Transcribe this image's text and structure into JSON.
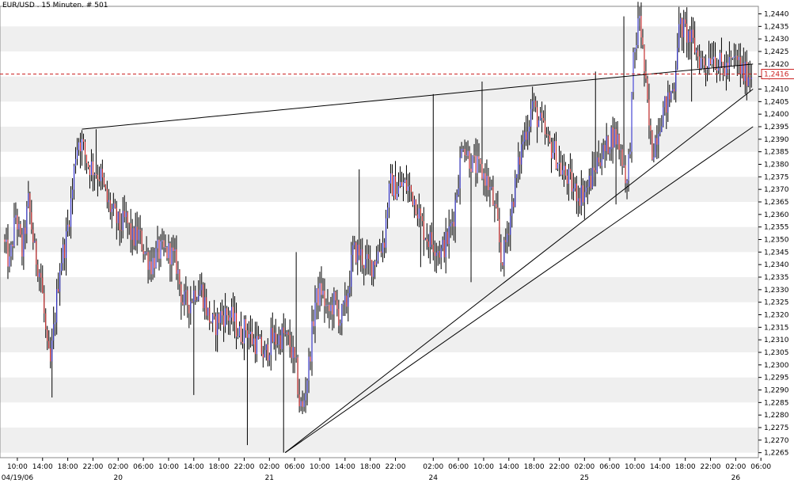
{
  "chart_data": {
    "type": "candlestick",
    "title": "EUR/USD . 15 Minuten. # 501",
    "current_price_label": "1,2416",
    "current_price": 1.2416,
    "ylim": [
      1.2263,
      1.2443
    ],
    "y_ticks": [
      "1,2440",
      "1,2435",
      "1,2430",
      "1,2425",
      "1,2420",
      "1,2415",
      "1,2410",
      "1,2405",
      "1,2400",
      "1,2395",
      "1,2390",
      "1,2385",
      "1,2380",
      "1,2375",
      "1,2370",
      "1,2365",
      "1,2360",
      "1,2355",
      "1,2350",
      "1,2345",
      "1,2340",
      "1,2335",
      "1,2330",
      "1,2325",
      "1,2320",
      "1,2315",
      "1,2310",
      "1,2305",
      "1,2300",
      "1,2295",
      "1,2290",
      "1,2285",
      "1,2280",
      "1,2275",
      "1,2270",
      "1,2265"
    ],
    "x_tick_labels": [
      {
        "bar": 8,
        "label": "10:00",
        "sub": "04/19/06"
      },
      {
        "bar": 24,
        "label": "14:00",
        "sub": ""
      },
      {
        "bar": 40,
        "label": "18:00",
        "sub": ""
      },
      {
        "bar": 56,
        "label": "22:00",
        "sub": ""
      },
      {
        "bar": 72,
        "label": "02:00",
        "sub": "20"
      },
      {
        "bar": 88,
        "label": "06:00",
        "sub": ""
      },
      {
        "bar": 104,
        "label": "10:00",
        "sub": ""
      },
      {
        "bar": 120,
        "label": "14:00",
        "sub": ""
      },
      {
        "bar": 136,
        "label": "18:00",
        "sub": ""
      },
      {
        "bar": 152,
        "label": "22:00",
        "sub": ""
      },
      {
        "bar": 168,
        "label": "02:00",
        "sub": "21"
      },
      {
        "bar": 184,
        "label": "06:00",
        "sub": ""
      },
      {
        "bar": 200,
        "label": "10:00",
        "sub": ""
      },
      {
        "bar": 216,
        "label": "14:00",
        "sub": ""
      },
      {
        "bar": 232,
        "label": "18:00",
        "sub": ""
      },
      {
        "bar": 248,
        "label": "22:00",
        "sub": ""
      },
      {
        "bar": 272,
        "label": "02:00",
        "sub": "24"
      },
      {
        "bar": 288,
        "label": "06:00",
        "sub": ""
      },
      {
        "bar": 304,
        "label": "10:00",
        "sub": ""
      },
      {
        "bar": 320,
        "label": "14:00",
        "sub": ""
      },
      {
        "bar": 336,
        "label": "18:00",
        "sub": ""
      },
      {
        "bar": 352,
        "label": "22:00",
        "sub": ""
      },
      {
        "bar": 368,
        "label": "02:00",
        "sub": "25"
      },
      {
        "bar": 384,
        "label": "06:00",
        "sub": ""
      },
      {
        "bar": 400,
        "label": "10:00",
        "sub": ""
      },
      {
        "bar": 416,
        "label": "14:00",
        "sub": ""
      },
      {
        "bar": 432,
        "label": "18:00",
        "sub": ""
      },
      {
        "bar": 448,
        "label": "22:00",
        "sub": ""
      },
      {
        "bar": 464,
        "label": "02:00",
        "sub": "26"
      },
      {
        "bar": 480,
        "label": "06:00",
        "sub": ""
      }
    ],
    "price_anchors": [
      [
        0,
        1.235
      ],
      [
        4,
        1.234
      ],
      [
        8,
        1.236
      ],
      [
        12,
        1.2345
      ],
      [
        16,
        1.2365
      ],
      [
        20,
        1.2345
      ],
      [
        24,
        1.2335
      ],
      [
        28,
        1.2305
      ],
      [
        30,
        1.23
      ],
      [
        33,
        1.232
      ],
      [
        36,
        1.234
      ],
      [
        40,
        1.235
      ],
      [
        44,
        1.237
      ],
      [
        46,
        1.2385
      ],
      [
        48,
        1.239
      ],
      [
        50,
        1.2388
      ],
      [
        54,
        1.238
      ],
      [
        58,
        1.2378
      ],
      [
        62,
        1.2375
      ],
      [
        66,
        1.2365
      ],
      [
        70,
        1.236
      ],
      [
        74,
        1.2355
      ],
      [
        78,
        1.2358
      ],
      [
        82,
        1.235
      ],
      [
        86,
        1.2352
      ],
      [
        90,
        1.2345
      ],
      [
        94,
        1.234
      ],
      [
        98,
        1.2345
      ],
      [
        102,
        1.2345
      ],
      [
        106,
        1.2345
      ],
      [
        110,
        1.234
      ],
      [
        114,
        1.2325
      ],
      [
        118,
        1.2325
      ],
      [
        122,
        1.233
      ],
      [
        126,
        1.233
      ],
      [
        130,
        1.232
      ],
      [
        134,
        1.2315
      ],
      [
        138,
        1.232
      ],
      [
        142,
        1.232
      ],
      [
        146,
        1.2318
      ],
      [
        150,
        1.2312
      ],
      [
        154,
        1.2315
      ],
      [
        158,
        1.231
      ],
      [
        162,
        1.2308
      ],
      [
        166,
        1.2303
      ],
      [
        170,
        1.231
      ],
      [
        174,
        1.231
      ],
      [
        178,
        1.2312
      ],
      [
        182,
        1.2308
      ],
      [
        186,
        1.2298
      ],
      [
        188,
        1.2285
      ],
      [
        190,
        1.2282
      ],
      [
        194,
        1.23
      ],
      [
        198,
        1.2325
      ],
      [
        202,
        1.233
      ],
      [
        206,
        1.232
      ],
      [
        210,
        1.2325
      ],
      [
        214,
        1.2318
      ],
      [
        218,
        1.2325
      ],
      [
        222,
        1.2345
      ],
      [
        226,
        1.2345
      ],
      [
        230,
        1.234
      ],
      [
        234,
        1.234
      ],
      [
        238,
        1.2345
      ],
      [
        242,
        1.235
      ],
      [
        244,
        1.2365
      ],
      [
        246,
        1.2372
      ],
      [
        250,
        1.237
      ],
      [
        254,
        1.2372
      ],
      [
        258,
        1.237
      ],
      [
        262,
        1.2365
      ],
      [
        266,
        1.2355
      ],
      [
        270,
        1.235
      ],
      [
        274,
        1.2348
      ],
      [
        278,
        1.2345
      ],
      [
        282,
        1.235
      ],
      [
        286,
        1.236
      ],
      [
        290,
        1.238
      ],
      [
        292,
        1.239
      ],
      [
        294,
        1.2385
      ],
      [
        298,
        1.238
      ],
      [
        302,
        1.2378
      ],
      [
        306,
        1.2375
      ],
      [
        310,
        1.2368
      ],
      [
        314,
        1.2355
      ],
      [
        316,
        1.2342
      ],
      [
        318,
        1.2345
      ],
      [
        322,
        1.236
      ],
      [
        326,
        1.2375
      ],
      [
        330,
        1.239
      ],
      [
        334,
        1.2398
      ],
      [
        336,
        1.2405
      ],
      [
        338,
        1.24
      ],
      [
        342,
        1.2395
      ],
      [
        346,
        1.2388
      ],
      [
        350,
        1.2385
      ],
      [
        354,
        1.2378
      ],
      [
        358,
        1.2375
      ],
      [
        362,
        1.237
      ],
      [
        366,
        1.2368
      ],
      [
        370,
        1.237
      ],
      [
        374,
        1.2375
      ],
      [
        378,
        1.2383
      ],
      [
        382,
        1.2385
      ],
      [
        386,
        1.2392
      ],
      [
        390,
        1.239
      ],
      [
        394,
        1.238
      ],
      [
        396,
        1.2372
      ],
      [
        398,
        1.239
      ],
      [
        400,
        1.242
      ],
      [
        402,
        1.243
      ],
      [
        404,
        1.244
      ],
      [
        406,
        1.2425
      ],
      [
        408,
        1.241
      ],
      [
        410,
        1.2395
      ],
      [
        412,
        1.2385
      ],
      [
        414,
        1.239
      ],
      [
        418,
        1.24
      ],
      [
        422,
        1.2405
      ],
      [
        426,
        1.2412
      ],
      [
        428,
        1.243
      ],
      [
        430,
        1.2435
      ],
      [
        434,
        1.2432
      ],
      [
        438,
        1.2428
      ],
      [
        442,
        1.2422
      ],
      [
        446,
        1.242
      ],
      [
        450,
        1.2425
      ],
      [
        454,
        1.242
      ],
      [
        458,
        1.2418
      ],
      [
        462,
        1.242
      ],
      [
        466,
        1.2422
      ],
      [
        468,
        1.2418
      ],
      [
        470,
        1.2416
      ]
    ],
    "wicks": [
      [
        30,
        1.2287
      ],
      [
        58,
        1.2394
      ],
      [
        120,
        1.2288
      ],
      [
        154,
        1.2268
      ],
      [
        177,
        1.2265
      ],
      [
        185,
        1.2345
      ],
      [
        225,
        1.2378
      ],
      [
        264,
        1.2339
      ],
      [
        272,
        1.2408
      ],
      [
        296,
        1.2333
      ],
      [
        303,
        1.2413
      ],
      [
        355,
        1.2371
      ],
      [
        375,
        1.2417
      ],
      [
        388,
        1.2364
      ],
      [
        393,
        1.2439
      ],
      [
        436,
        1.2405
      ]
    ],
    "trendlines": [
      {
        "from": [
          49,
          1.2394
        ],
        "to": [
          475,
          1.242
        ]
      },
      {
        "from": [
          178,
          1.2265
        ],
        "to": [
          475,
          1.241
        ]
      },
      {
        "from": [
          178,
          1.2265
        ],
        "to": [
          475,
          1.2395
        ]
      }
    ],
    "bar_count": 475
  }
}
